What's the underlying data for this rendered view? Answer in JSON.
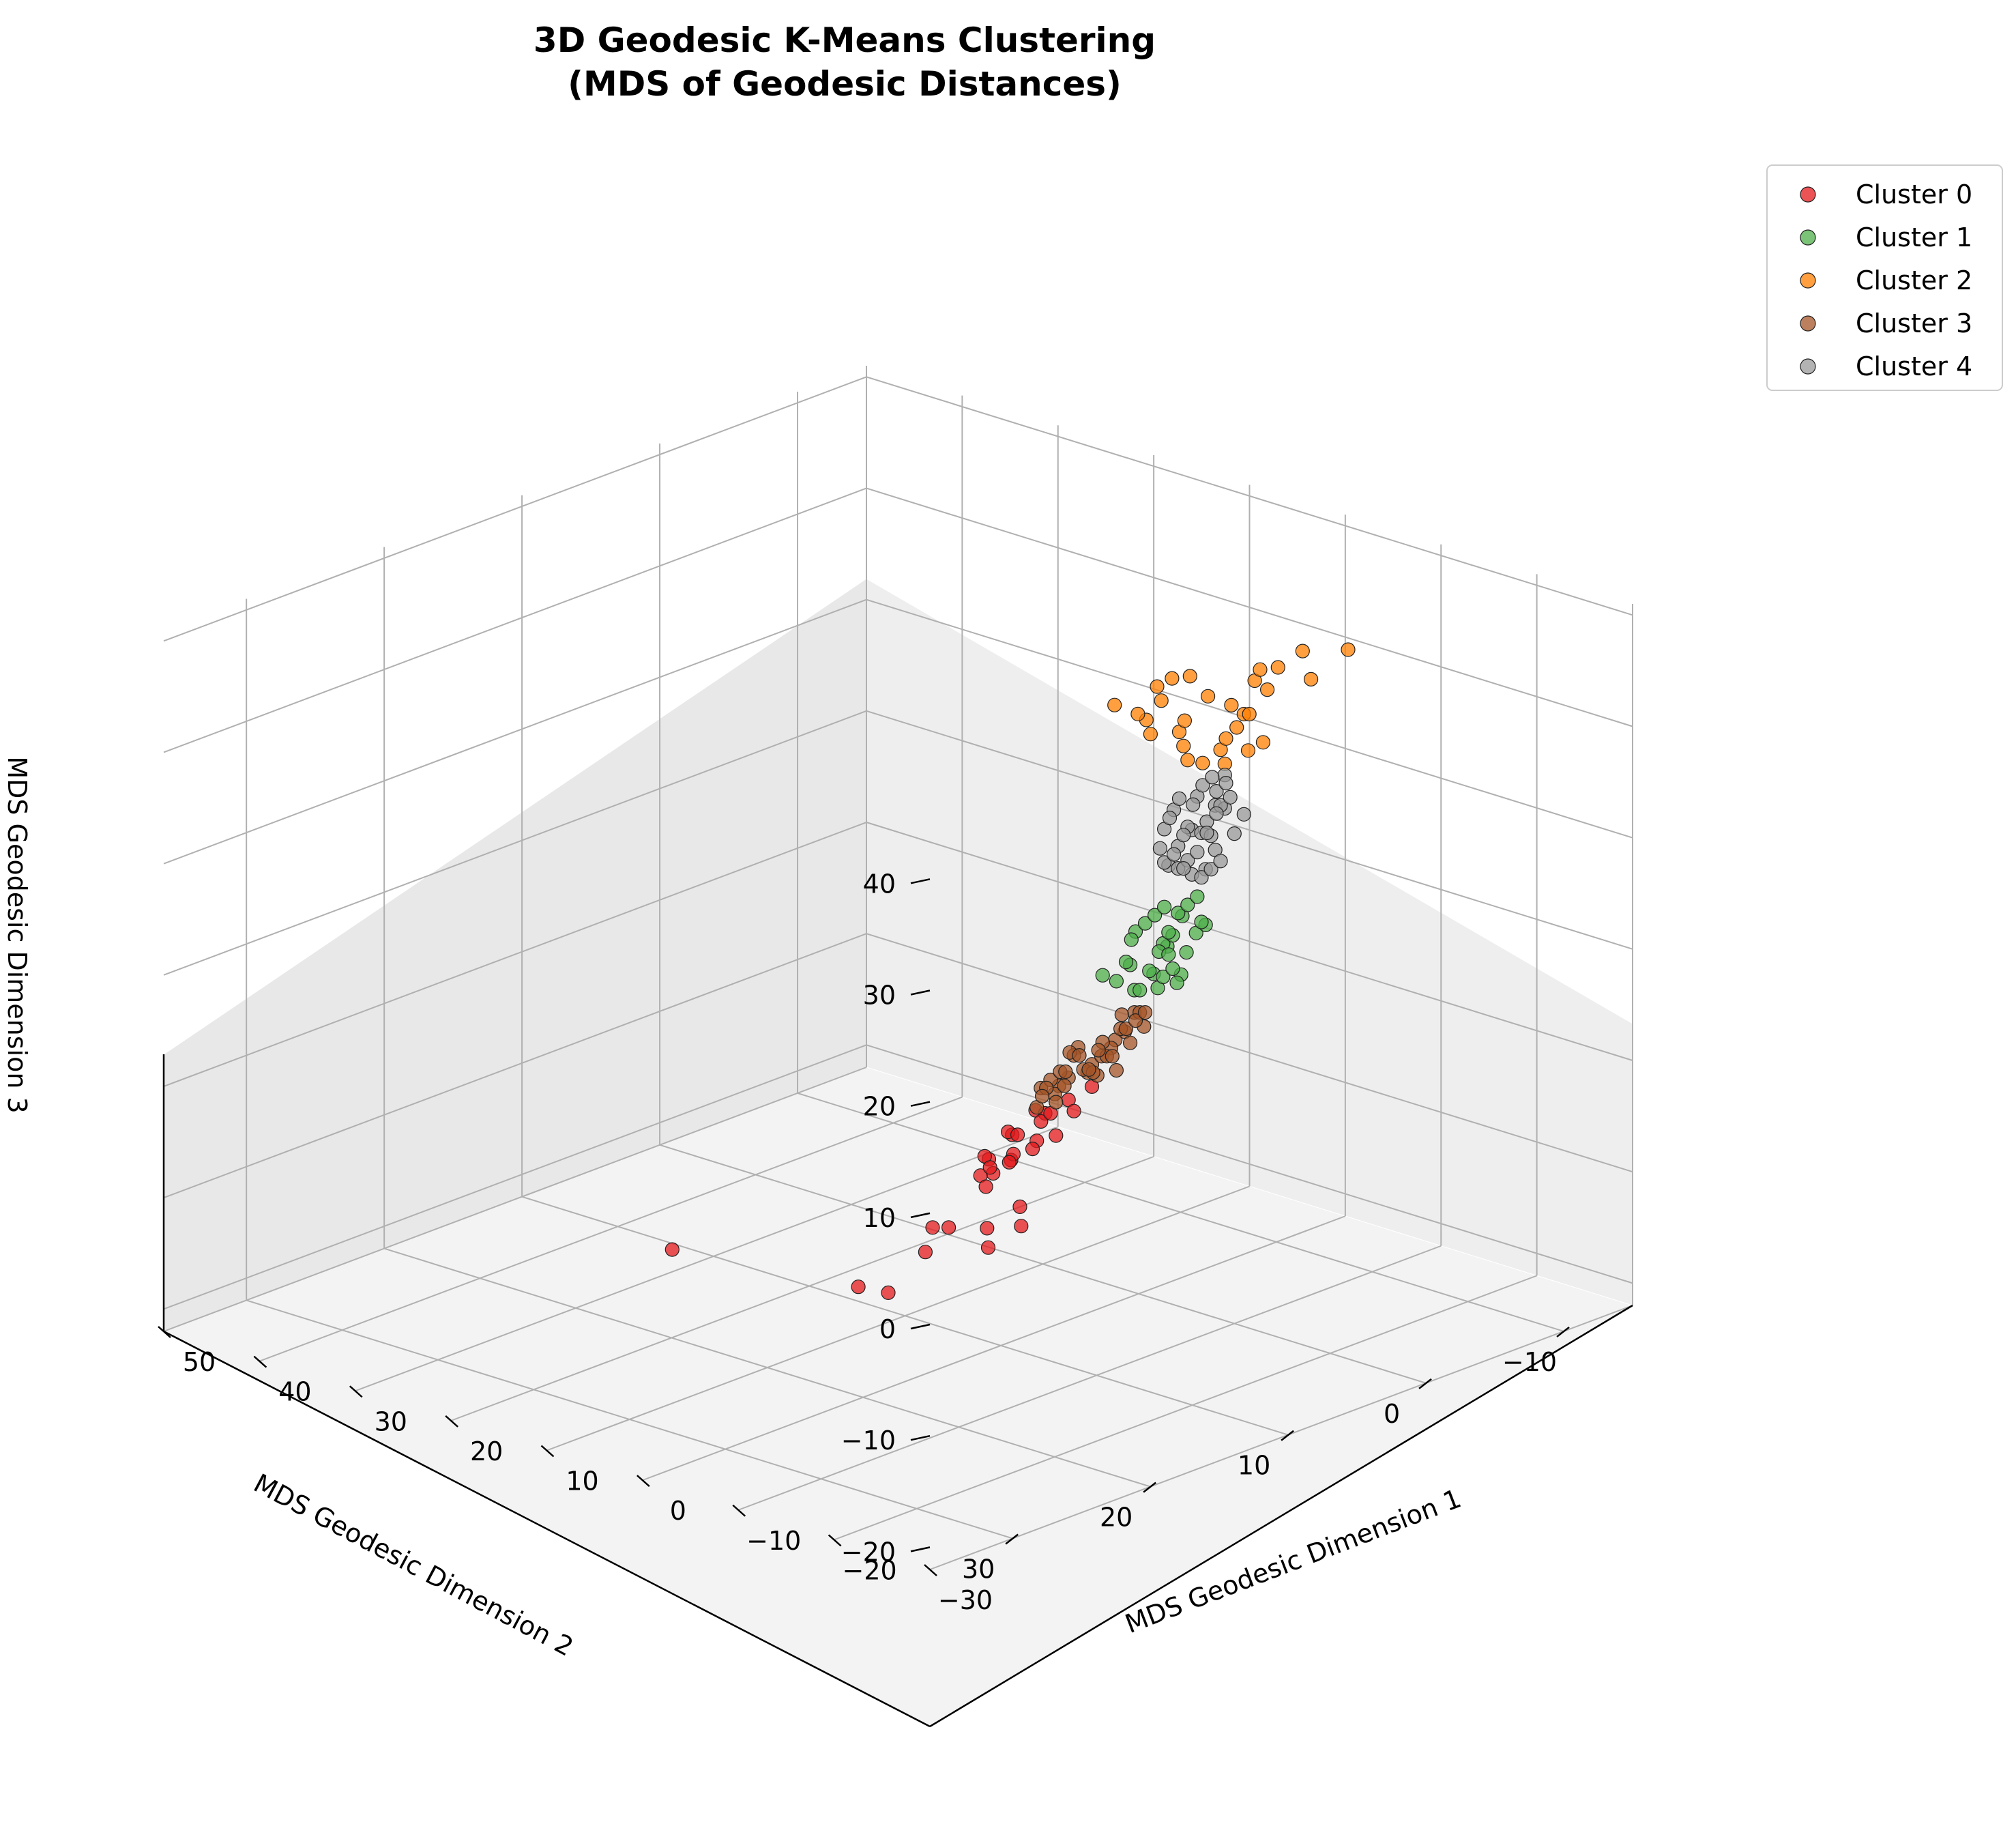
{
  "chart_data": {
    "type": "scatter",
    "subtype": "3d",
    "title_line1": "3D Geodesic K-Means Clustering",
    "title_line2": "(MDS of Geodesic Distances)",
    "xlabel": "MDS Geodesic Dimension 1",
    "ylabel": "MDS Geodesic Dimension 2",
    "zlabel": "MDS Geodesic Dimension 3",
    "xlim": [
      -30,
      50
    ],
    "ylim": [
      -15,
      36
    ],
    "zlim": [
      -22,
      41
    ],
    "xticks": [
      "−30",
      "−20",
      "−10",
      "0",
      "10",
      "20",
      "30",
      "40",
      "50"
    ],
    "yticks": [
      "−10",
      "0",
      "10",
      "20",
      "30"
    ],
    "zticks": [
      "−20",
      "−10",
      "0",
      "10",
      "20",
      "30",
      "40"
    ],
    "grid": true,
    "legend_position": "upper right, outside plot",
    "series": [
      {
        "name": "Cluster 0",
        "color": "#e41a1c",
        "points": [
          [
            3,
            5,
            -5
          ],
          [
            2,
            6,
            -6
          ],
          [
            4,
            4,
            -5
          ],
          [
            3,
            7,
            -7
          ],
          [
            5,
            6,
            -6
          ],
          [
            2,
            5,
            -4
          ],
          [
            6,
            5,
            -7
          ],
          [
            1,
            7,
            -6
          ],
          [
            4,
            8,
            -8
          ],
          [
            3,
            3,
            -4
          ],
          [
            5,
            4,
            -5
          ],
          [
            2,
            8,
            -7
          ],
          [
            6,
            7,
            -8
          ],
          [
            4,
            6,
            -6
          ],
          [
            1,
            4,
            -4
          ],
          [
            3,
            9,
            -9
          ],
          [
            7,
            6,
            -9
          ],
          [
            0,
            6,
            -5
          ],
          [
            5,
            8,
            -9
          ],
          [
            2,
            2,
            -3
          ],
          [
            8,
            5,
            -11
          ],
          [
            -2,
            10,
            -9
          ],
          [
            0,
            11,
            -11
          ],
          [
            4,
            11,
            -12
          ],
          [
            9,
            3,
            -11
          ],
          [
            10,
            8,
            -15
          ],
          [
            5,
            12,
            -14
          ],
          [
            -3,
            13,
            -11
          ],
          [
            -5,
            12,
            -9
          ],
          [
            6,
            14,
            -17
          ],
          [
            12,
            12,
            -19
          ],
          [
            30,
            13,
            -20
          ]
        ]
      },
      {
        "name": "Cluster 1",
        "color": "#4daf4a",
        "points": [
          [
            -5,
            1,
            12
          ],
          [
            -6,
            2,
            13
          ],
          [
            -4,
            1,
            11
          ],
          [
            -5,
            3,
            14
          ],
          [
            -7,
            2,
            15
          ],
          [
            -3,
            0,
            10
          ],
          [
            -6,
            0,
            12
          ],
          [
            -4,
            3,
            13
          ],
          [
            -5,
            2,
            11
          ],
          [
            -8,
            1,
            14
          ],
          [
            -2,
            2,
            9
          ],
          [
            -6,
            3,
            15
          ],
          [
            -3,
            1,
            8
          ],
          [
            -4,
            2,
            9
          ],
          [
            -7,
            0,
            13
          ],
          [
            -5,
            0,
            10
          ],
          [
            -2,
            3,
            8
          ],
          [
            -6,
            1,
            14
          ],
          [
            -4,
            0,
            7
          ],
          [
            -3,
            2,
            7
          ],
          [
            -5,
            1,
            9
          ],
          [
            -8,
            2,
            16
          ],
          [
            -3,
            3,
            10
          ],
          [
            -1,
            1,
            6
          ],
          [
            -2,
            0,
            6
          ],
          [
            -7,
            3,
            16
          ],
          [
            -6,
            2,
            11
          ],
          [
            -4,
            1,
            8
          ],
          [
            -5,
            4,
            13
          ],
          [
            -3,
            -1,
            7
          ],
          [
            -9,
            2,
            17
          ],
          [
            -2,
            4,
            9
          ]
        ]
      },
      {
        "name": "Cluster 2",
        "color": "#ff7f00",
        "points": [
          [
            -10,
            1,
            30
          ],
          [
            -12,
            2,
            32
          ],
          [
            -9,
            3,
            31
          ],
          [
            -11,
            0,
            33
          ],
          [
            -13,
            1,
            34
          ],
          [
            -10,
            4,
            33
          ],
          [
            -8,
            2,
            29
          ],
          [
            -14,
            3,
            36
          ],
          [
            -12,
            5,
            35
          ],
          [
            -9,
            0,
            28
          ],
          [
            -11,
            6,
            37
          ],
          [
            -15,
            2,
            38
          ],
          [
            -13,
            4,
            37
          ],
          [
            -16,
            1,
            39
          ],
          [
            -10,
            7,
            36
          ],
          [
            -12,
            -1,
            35
          ],
          [
            -17,
            3,
            40
          ],
          [
            -14,
            6,
            40
          ],
          [
            -8,
            5,
            34
          ],
          [
            -18,
            0,
            38
          ],
          [
            -15,
            8,
            41
          ],
          [
            -19,
            -2,
            40
          ],
          [
            -20,
            2,
            42
          ],
          [
            -9,
            8,
            37
          ],
          [
            -11,
            3,
            30
          ],
          [
            -13,
            0,
            31
          ],
          [
            -16,
            4,
            35
          ],
          [
            -10,
            -1,
            29
          ],
          [
            -12,
            7,
            39
          ],
          [
            -7,
            4,
            32
          ]
        ]
      },
      {
        "name": "Cluster 3",
        "color": "#a65628",
        "points": [
          [
            -1,
            3,
            1
          ],
          [
            0,
            4,
            0
          ],
          [
            -2,
            2,
            2
          ],
          [
            1,
            3,
            -1
          ],
          [
            -1,
            5,
            2
          ],
          [
            0,
            2,
            1
          ],
          [
            2,
            4,
            -2
          ],
          [
            -2,
            4,
            3
          ],
          [
            1,
            5,
            0
          ],
          [
            -3,
            3,
            4
          ],
          [
            0,
            3,
            -1
          ],
          [
            2,
            2,
            -1
          ],
          [
            -1,
            2,
            3
          ],
          [
            1,
            4,
            1
          ],
          [
            -2,
            5,
            1
          ],
          [
            3,
            3,
            -2
          ],
          [
            0,
            5,
            2
          ],
          [
            -3,
            2,
            5
          ],
          [
            2,
            5,
            -1
          ],
          [
            -1,
            4,
            0
          ],
          [
            1,
            2,
            0
          ],
          [
            -4,
            3,
            5
          ],
          [
            0,
            1,
            2
          ],
          [
            3,
            4,
            -3
          ],
          [
            -2,
            3,
            0
          ],
          [
            1,
            6,
            -1
          ],
          [
            -3,
            4,
            2
          ],
          [
            2,
            3,
            1
          ],
          [
            -1,
            6,
            1
          ],
          [
            4,
            3,
            -3
          ],
          [
            -2,
            1,
            3
          ],
          [
            0,
            6,
            -2
          ],
          [
            -4,
            4,
            6
          ],
          [
            3,
            5,
            -2
          ],
          [
            -1,
            1,
            4
          ],
          [
            2,
            6,
            -3
          ],
          [
            -3,
            5,
            3
          ],
          [
            1,
            1,
            1
          ],
          [
            -5,
            3,
            6
          ],
          [
            0,
            7,
            -1
          ]
        ]
      },
      {
        "name": "Cluster 4",
        "color": "#999999",
        "points": [
          [
            -8,
            2,
            20
          ],
          [
            -9,
            1,
            22
          ],
          [
            -7,
            2,
            19
          ],
          [
            -8,
            3,
            21
          ],
          [
            -10,
            2,
            24
          ],
          [
            -7,
            1,
            18
          ],
          [
            -9,
            3,
            23
          ],
          [
            -8,
            0,
            20
          ],
          [
            -10,
            1,
            25
          ],
          [
            -9,
            2,
            26
          ],
          [
            -7,
            3,
            20
          ],
          [
            -8,
            1,
            22
          ],
          [
            -11,
            2,
            27
          ],
          [
            -10,
            3,
            26
          ],
          [
            -9,
            0,
            24
          ],
          [
            -8,
            2,
            23
          ],
          [
            -7,
            2,
            21
          ],
          [
            -9,
            1,
            19
          ],
          [
            -10,
            0,
            22
          ],
          [
            -11,
            3,
            28
          ],
          [
            -8,
            3,
            25
          ],
          [
            -7,
            0,
            18
          ],
          [
            -9,
            2,
            21
          ],
          [
            -10,
            2,
            23
          ],
          [
            -8,
            1,
            18
          ],
          [
            -11,
            1,
            26
          ],
          [
            -12,
            2,
            28
          ],
          [
            -9,
            4,
            25
          ],
          [
            -7,
            1,
            22
          ],
          [
            -10,
            4,
            27
          ],
          [
            -8,
            0,
            24
          ],
          [
            -11,
            0,
            24
          ],
          [
            -9,
            3,
            20
          ],
          [
            -12,
            3,
            29
          ],
          [
            -7,
            3,
            23
          ],
          [
            -10,
            1,
            20
          ],
          [
            -8,
            4,
            22
          ],
          [
            -11,
            2,
            25
          ],
          [
            -9,
            0,
            27
          ],
          [
            -6,
            2,
            19
          ]
        ]
      }
    ]
  }
}
